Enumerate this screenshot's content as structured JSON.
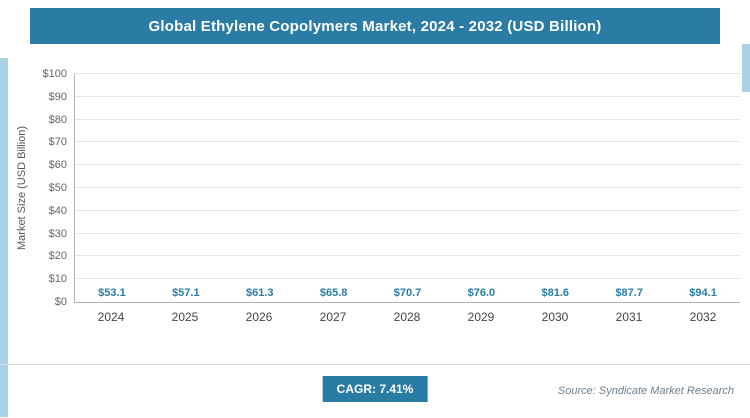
{
  "header": {
    "title": "Global Ethylene Copolymers Market, 2024 - 2032 (USD Billion)"
  },
  "chart_data": {
    "type": "bar",
    "categories": [
      "2024",
      "2025",
      "2026",
      "2027",
      "2028",
      "2029",
      "2030",
      "2031",
      "2032"
    ],
    "values": [
      53.1,
      57.1,
      61.3,
      65.8,
      70.7,
      76.0,
      81.6,
      87.7,
      94.1
    ],
    "value_labels": [
      "$53.1",
      "$57.1",
      "$61.3",
      "$65.8",
      "$70.7",
      "$76.0",
      "$81.6",
      "$87.7",
      "$94.1"
    ],
    "title": "Global Ethylene Copolymers Market, 2024 - 2032 (USD Billion)",
    "xlabel": "",
    "ylabel": "Market Size (USD Billion)",
    "ylim": [
      0,
      100
    ],
    "ytick_step": 10,
    "ytick_labels": [
      "$0",
      "$10",
      "$20",
      "$30",
      "$40",
      "$50",
      "$60",
      "$70",
      "$80",
      "$90",
      "$100"
    ],
    "grid": "horizontal",
    "legend": "none",
    "bar_color": "#2e86ad"
  },
  "footer": {
    "cagr_label": "CAGR: 7.41%",
    "source": "Source: Syndicate Market Research"
  },
  "colors": {
    "primary": "#2a7ca5",
    "bar": "#2e86ad",
    "accent_light": "#a9d2e6",
    "value_label": "#2a7ca5"
  }
}
